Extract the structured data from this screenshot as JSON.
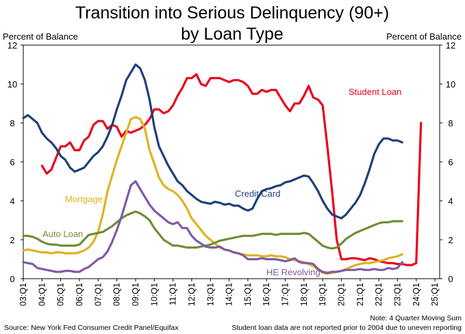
{
  "chart_data": {
    "type": "line",
    "title_lines": [
      "Transition into Serious Delinquency (90+)",
      "by Loan Type"
    ],
    "ylabel_left": "Percent of Balance",
    "ylabel_right": "Percent of Balance",
    "ylim": [
      0,
      12
    ],
    "yticks": [
      "0",
      "2",
      "4",
      "6",
      "8",
      "10",
      "12"
    ],
    "x_start": 2003.0,
    "x_end": 2025.25,
    "xticks": [
      "03:Q1",
      "04:Q1",
      "05:Q1",
      "06:Q1",
      "07:Q1",
      "08:Q1",
      "09:Q1",
      "10:Q1",
      "11:Q1",
      "12:Q1",
      "13:Q1",
      "14:Q1",
      "15:Q1",
      "16:Q1",
      "17:Q1",
      "18:Q1",
      "19:Q1",
      "20:Q1",
      "21:Q1",
      "22:Q1",
      "23:Q1",
      "24:Q1",
      "25:Q1"
    ],
    "grid": false,
    "series": [
      {
        "name": "Student Loan",
        "color": "#e8001c",
        "start": 2004.0,
        "values": [
          5.8,
          5.4,
          5.6,
          6.2,
          6.8,
          6.8,
          7.0,
          6.6,
          6.6,
          7.1,
          7.3,
          7.9,
          8.1,
          8.1,
          7.7,
          7.9,
          7.8,
          7.3,
          7.6,
          7.5,
          7.6,
          7.7,
          7.9,
          8.2,
          8.7,
          8.7,
          8.5,
          8.6,
          8.9,
          9.4,
          9.8,
          10.3,
          10.3,
          10.5,
          10.0,
          9.9,
          10.3,
          10.3,
          10.3,
          10.2,
          10.1,
          10.2,
          10.2,
          10.1,
          9.9,
          9.5,
          9.5,
          9.7,
          9.6,
          9.7,
          9.7,
          9.3,
          8.9,
          8.6,
          9.0,
          9.0,
          9.4,
          9.9,
          9.3,
          9.2,
          8.9,
          6.8,
          4.5,
          2.0,
          1.0,
          1.0,
          1.05,
          1.05,
          1.0,
          0.95,
          1.05,
          1.0,
          0.9,
          0.85,
          0.8,
          0.8,
          0.75,
          0.75,
          0.7,
          0.7,
          0.8,
          8.0
        ]
      },
      {
        "name": "Credit Card",
        "color": "#1f3f7a",
        "start": 2003.0,
        "values": [
          8.25,
          8.4,
          8.2,
          8.0,
          7.5,
          7.2,
          7.0,
          6.7,
          6.3,
          6.1,
          5.7,
          5.5,
          5.6,
          5.7,
          6.0,
          6.3,
          6.5,
          6.8,
          7.3,
          7.9,
          8.7,
          9.4,
          10.2,
          10.6,
          11.0,
          10.8,
          10.2,
          9.2,
          7.8,
          6.8,
          6.3,
          5.8,
          5.4,
          5.0,
          4.8,
          4.5,
          4.3,
          4.1,
          3.95,
          3.9,
          3.85,
          3.95,
          3.9,
          3.8,
          3.85,
          3.75,
          3.75,
          3.6,
          3.5,
          3.6,
          4.1,
          4.5,
          4.6,
          4.65,
          4.75,
          4.8,
          4.95,
          5.0,
          5.1,
          5.2,
          5.3,
          5.25,
          4.9,
          4.5,
          4.0,
          3.6,
          3.3,
          3.2,
          3.1,
          3.3,
          3.6,
          3.9,
          4.3,
          4.9,
          5.6,
          6.4,
          6.9,
          7.2,
          7.2,
          7.1,
          7.1,
          7.0
        ]
      },
      {
        "name": "Mortgage",
        "color": "#e0b21f",
        "start": 2003.0,
        "values": [
          1.45,
          1.5,
          1.45,
          1.4,
          1.35,
          1.35,
          1.3,
          1.35,
          1.35,
          1.3,
          1.3,
          1.3,
          1.35,
          1.45,
          1.6,
          1.9,
          2.4,
          3.3,
          4.5,
          5.3,
          6.1,
          6.8,
          7.5,
          8.2,
          8.3,
          8.2,
          7.7,
          6.6,
          5.9,
          5.2,
          4.8,
          4.6,
          4.5,
          4.3,
          4.0,
          3.6,
          3.1,
          2.8,
          2.5,
          2.2,
          2.0,
          1.8,
          1.6,
          1.5,
          1.45,
          1.35,
          1.3,
          1.25,
          1.2,
          1.2,
          1.2,
          1.15,
          1.15,
          1.2,
          1.15,
          1.15,
          1.1,
          1.0,
          0.95,
          0.9,
          0.85,
          0.75,
          0.65,
          0.45,
          0.3,
          0.25,
          0.3,
          0.35,
          0.4,
          0.5,
          0.6,
          0.7,
          0.75,
          0.8,
          0.8,
          0.85,
          0.9,
          0.95,
          1.05,
          1.1,
          1.15,
          1.25
        ]
      },
      {
        "name": "Auto Loan",
        "color": "#6f8e35",
        "start": 2003.0,
        "values": [
          2.2,
          2.2,
          2.15,
          2.05,
          1.9,
          1.8,
          1.75,
          1.75,
          1.7,
          1.7,
          1.7,
          1.7,
          1.75,
          2.0,
          2.25,
          2.3,
          2.35,
          2.4,
          2.55,
          2.7,
          2.9,
          3.1,
          3.25,
          3.35,
          3.45,
          3.35,
          3.2,
          3.0,
          2.6,
          2.3,
          2.0,
          1.85,
          1.7,
          1.7,
          1.65,
          1.6,
          1.6,
          1.6,
          1.65,
          1.7,
          1.75,
          1.85,
          1.95,
          2.0,
          2.05,
          2.1,
          2.15,
          2.2,
          2.2,
          2.2,
          2.25,
          2.3,
          2.3,
          2.3,
          2.25,
          2.3,
          2.3,
          2.3,
          2.3,
          2.3,
          2.35,
          2.3,
          2.1,
          1.9,
          1.7,
          1.6,
          1.55,
          1.6,
          1.8,
          2.05,
          2.2,
          2.35,
          2.45,
          2.55,
          2.65,
          2.75,
          2.85,
          2.9,
          2.9,
          2.95,
          2.95,
          2.95
        ]
      },
      {
        "name": "HE Revolving",
        "color": "#7e5aa6",
        "start": 2003.0,
        "values": [
          0.85,
          0.8,
          0.75,
          0.55,
          0.5,
          0.45,
          0.4,
          0.35,
          0.35,
          0.4,
          0.4,
          0.35,
          0.35,
          0.5,
          0.6,
          0.8,
          1.0,
          1.1,
          1.4,
          1.9,
          2.5,
          3.2,
          4.0,
          4.8,
          5.0,
          4.6,
          4.2,
          3.8,
          3.5,
          3.3,
          3.1,
          2.9,
          2.8,
          2.9,
          2.6,
          2.6,
          2.2,
          1.95,
          1.8,
          1.65,
          1.6,
          1.6,
          1.65,
          1.5,
          1.45,
          1.35,
          1.3,
          1.2,
          1.0,
          1.0,
          1.0,
          1.05,
          1.0,
          1.0,
          1.0,
          0.95,
          0.9,
          0.95,
          1.05,
          0.85,
          0.8,
          0.8,
          0.75,
          0.5,
          0.35,
          0.3,
          0.35,
          0.35,
          0.4,
          0.45,
          0.45,
          0.45,
          0.5,
          0.45,
          0.45,
          0.5,
          0.45,
          0.45,
          0.55,
          0.5,
          0.55,
          0.85
        ]
      }
    ],
    "series_labels": [
      {
        "name": "Student Loan",
        "text": "Student Loan"
      },
      {
        "name": "Credit Card",
        "text": "Credit Card"
      },
      {
        "name": "Mortgage",
        "text": "Mortgage"
      },
      {
        "name": "Auto Loan",
        "text": "Auto Loan"
      },
      {
        "name": "HE Revolving",
        "text": "HE Revolving"
      }
    ],
    "source": "Source: New York Fed Consumer Credit Panel/Equifax",
    "notes": [
      "Note: 4 Quarter Moving Sum",
      "Student loan data are not reported prior to 2004 due to uneven reporting"
    ]
  }
}
